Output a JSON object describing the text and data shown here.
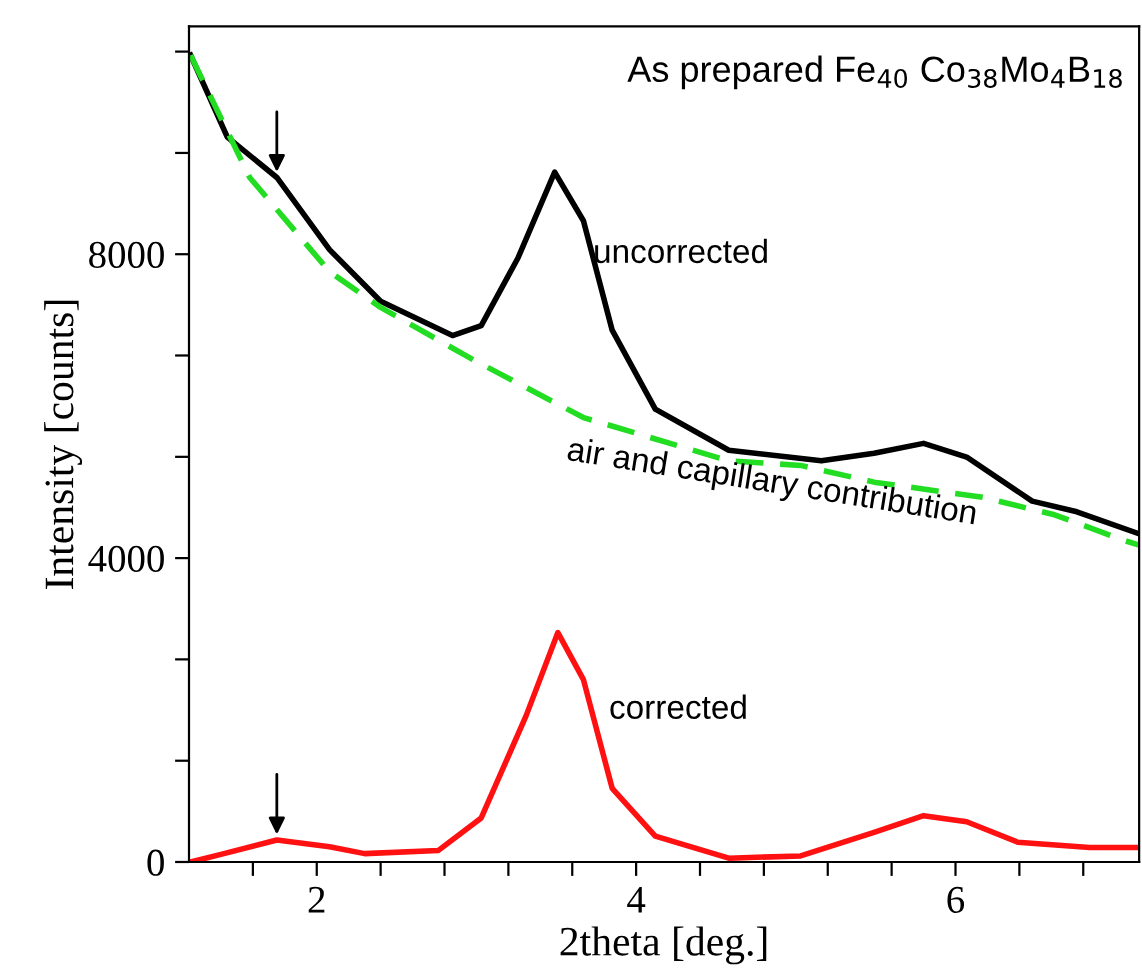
{
  "chart_data": {
    "type": "line",
    "title": "As prepared Fe$_{40}$ Co$_{38}$Mo$_{4}$B$_{18}$",
    "xlabel": "2theta [deg.]",
    "ylabel": "Intensity [counts]",
    "xlim": [
      1.2,
      7.15
    ],
    "ylim": [
      0,
      11000
    ],
    "xticks": [
      2,
      {
        "value": 2.4,
        "label": null
      },
      {
        "value": 2.8,
        "label": null
      },
      {
        "value": 3.2,
        "label": null
      },
      {
        "value": 3.6,
        "label": null
      },
      4,
      {
        "value": 1.6,
        "label": null
      },
      {
        "value": 4.4,
        "label": null
      },
      {
        "value": 4.8,
        "label": null
      },
      {
        "value": 5.2,
        "label": null
      },
      {
        "value": 5.6,
        "label": null
      },
      6,
      {
        "value": 6.4,
        "label": null
      },
      {
        "value": 6.8,
        "label": null
      }
    ],
    "yticks": [
      0,
      {
        "value": 1333,
        "label": null
      },
      {
        "value": 2667,
        "label": null
      },
      4000,
      {
        "value": 5333,
        "label": null
      },
      {
        "value": 6667,
        "label": null
      },
      8000,
      {
        "value": 9333,
        "label": null
      },
      {
        "value": 10667,
        "label": null
      }
    ],
    "grid": false,
    "legend": false,
    "marker": "none",
    "series": [
      {
        "name": "uncorrected",
        "color": "#000000",
        "line_style": "solid",
        "x": [
          1.21,
          1.44,
          1.75,
          2.08,
          2.4,
          2.85,
          3.03,
          3.26,
          3.49,
          3.67,
          3.85,
          4.12,
          4.58,
          5.16,
          5.49,
          5.8,
          6.07,
          6.48,
          6.76,
          7.15
        ],
        "values": [
          10620,
          9540,
          9010,
          8060,
          7380,
          6930,
          7060,
          7950,
          9080,
          8440,
          7000,
          5960,
          5420,
          5280,
          5380,
          5510,
          5330,
          4750,
          4610,
          4320
        ]
      },
      {
        "name": "air and capillary contribution",
        "color": "#22dd22",
        "line_style": "dashed",
        "x": [
          1.21,
          1.58,
          2.08,
          2.4,
          2.98,
          3.67,
          4.58,
          5.03,
          5.49,
          6.17,
          6.62,
          7.06,
          7.15
        ],
        "values": [
          10620,
          9010,
          7770,
          7300,
          6610,
          5850,
          5280,
          5220,
          5000,
          4800,
          4570,
          4230,
          4170
        ]
      },
      {
        "name": "corrected",
        "color": "#ff1111",
        "line_style": "solid",
        "x": [
          1.21,
          1.4,
          1.75,
          2.08,
          2.3,
          2.76,
          3.03,
          3.31,
          3.51,
          3.67,
          3.85,
          4.12,
          4.58,
          5.03,
          5.49,
          5.8,
          6.07,
          6.39,
          6.84,
          7.15
        ],
        "values": [
          0,
          100,
          290,
          200,
          110,
          150,
          580,
          1920,
          3020,
          2400,
          970,
          340,
          50,
          80,
          390,
          610,
          530,
          260,
          190,
          190
        ]
      }
    ]
  }
}
